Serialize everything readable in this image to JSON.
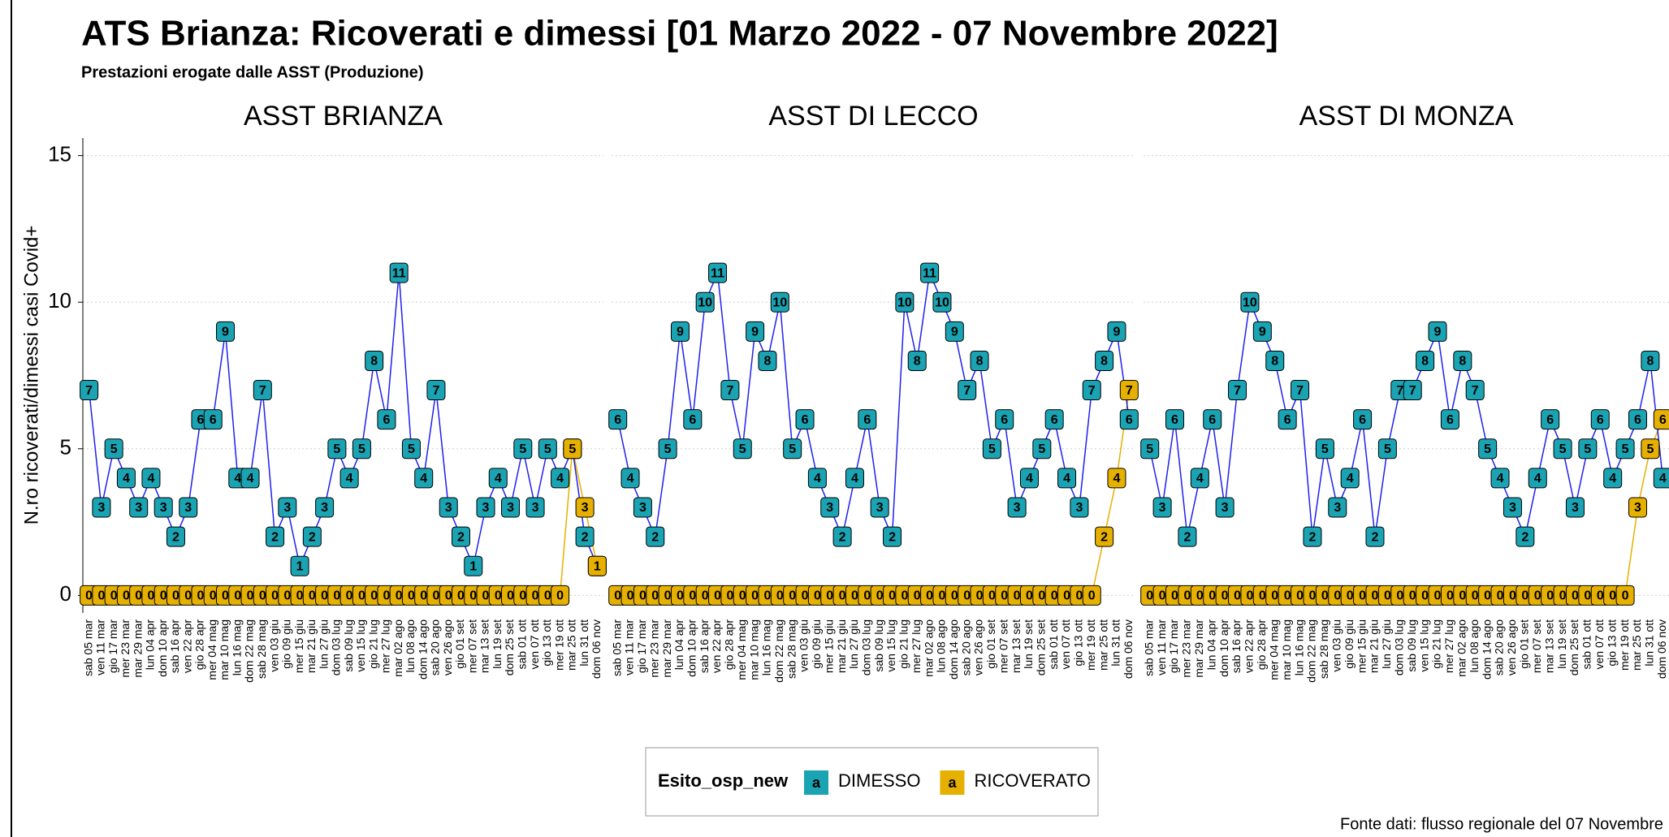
{
  "header": {
    "title": "ATS Brianza: Ricoverati e dimessi [01 Marzo 2022 - 07 Novembre 2022]",
    "subtitle": "Prestazioni erogate dalle ASST (Produzione)",
    "ylabel": "N.ro ricoverati/dimessi casi Covid+"
  },
  "legend": {
    "title": "Esito_osp_new",
    "glyph": "a"
  },
  "source": "Fonte dati: flusso regionale del 07 Novembre",
  "chart_data": [
    {
      "type": "line",
      "title": "ASST BRIANZA",
      "categories": [
        "sab 05 mar",
        "ven 11 mar",
        "gio 17 mar",
        "mer 23 mar",
        "mar 29 mar",
        "lun 04 apr",
        "dom 10 apr",
        "sab 16 apr",
        "ven 22 apr",
        "gio 28 apr",
        "mer 04 mag",
        "mar 10 mag",
        "lun 16 mag",
        "dom 22 mag",
        "sab 28 mag",
        "ven 03 giu",
        "gio 09 giu",
        "mer 15 giu",
        "mar 21 giu",
        "lun 27 giu",
        "dom 03 lug",
        "sab 09 lug",
        "ven 15 lug",
        "gio 21 lug",
        "mer 27 lug",
        "mar 02 ago",
        "lun 08 ago",
        "dom 14 ago",
        "sab 20 ago",
        "ven 26 ago",
        "gio 01 set",
        "mer 07 set",
        "mar 13 set",
        "lun 19 set",
        "dom 25 set",
        "sab 01 ott",
        "ven 07 ott",
        "gio 13 ott",
        "mer 19 ott",
        "mar 25 ott",
        "lun 31 ott",
        "dom 06 nov"
      ],
      "series": [
        {
          "name": "DIMESSO",
          "color": "#1aa3b2",
          "line_color": "#2020f0",
          "values": [
            7,
            3,
            5,
            4,
            3,
            4,
            3,
            2,
            3,
            6,
            6,
            9,
            4,
            4,
            7,
            2,
            3,
            1,
            2,
            3,
            5,
            4,
            5,
            8,
            6,
            11,
            5,
            4,
            7,
            3,
            2,
            1,
            3,
            4,
            3,
            5,
            3,
            5,
            4,
            5,
            2,
            1
          ]
        },
        {
          "name": "RICOVERATO",
          "color": "#e6b000",
          "line_color": "#e6b000",
          "values": [
            0,
            0,
            0,
            0,
            0,
            0,
            0,
            0,
            0,
            0,
            0,
            0,
            0,
            0,
            0,
            0,
            0,
            0,
            0,
            0,
            0,
            0,
            0,
            0,
            0,
            0,
            0,
            0,
            0,
            0,
            0,
            0,
            0,
            0,
            0,
            0,
            0,
            0,
            0,
            5,
            3,
            1
          ]
        }
      ],
      "ylim": [
        -0.6,
        15.6
      ],
      "yticks": [
        0,
        5,
        10,
        15
      ],
      "grid": true
    },
    {
      "type": "line",
      "title": "ASST DI LECCO",
      "categories": [
        "sab 05 mar",
        "ven 11 mar",
        "gio 17 mar",
        "mer 23 mar",
        "mar 29 mar",
        "lun 04 apr",
        "dom 10 apr",
        "sab 16 apr",
        "ven 22 apr",
        "gio 28 apr",
        "mer 04 mag",
        "mar 10 mag",
        "lun 16 mag",
        "dom 22 mag",
        "sab 28 mag",
        "ven 03 giu",
        "gio 09 giu",
        "mer 15 giu",
        "mar 21 giu",
        "lun 27 giu",
        "dom 03 lug",
        "sab 09 lug",
        "ven 15 lug",
        "gio 21 lug",
        "mer 27 lug",
        "mar 02 ago",
        "lun 08 ago",
        "dom 14 ago",
        "sab 20 ago",
        "ven 26 ago",
        "gio 01 set",
        "mer 07 set",
        "mar 13 set",
        "lun 19 set",
        "dom 25 set",
        "sab 01 ott",
        "ven 07 ott",
        "gio 13 ott",
        "mer 19 ott",
        "mar 25 ott",
        "lun 31 ott",
        "dom 06 nov"
      ],
      "series": [
        {
          "name": "DIMESSO",
          "color": "#1aa3b2",
          "line_color": "#2020f0",
          "values": [
            6,
            4,
            3,
            2,
            5,
            9,
            6,
            10,
            11,
            7,
            5,
            9,
            8,
            10,
            5,
            6,
            4,
            3,
            2,
            4,
            6,
            3,
            2,
            10,
            8,
            11,
            10,
            9,
            7,
            8,
            5,
            6,
            3,
            4,
            5,
            6,
            4,
            3,
            7,
            8,
            9,
            6
          ]
        },
        {
          "name": "RICOVERATO",
          "color": "#e6b000",
          "line_color": "#e6b000",
          "values": [
            0,
            0,
            0,
            0,
            0,
            0,
            0,
            0,
            0,
            0,
            0,
            0,
            0,
            0,
            0,
            0,
            0,
            0,
            0,
            0,
            0,
            0,
            0,
            0,
            0,
            0,
            0,
            0,
            0,
            0,
            0,
            0,
            0,
            0,
            0,
            0,
            0,
            0,
            0,
            2,
            4,
            7
          ]
        }
      ],
      "ylim": [
        -0.6,
        15.6
      ],
      "yticks": [
        0,
        5,
        10,
        15
      ],
      "grid": true
    },
    {
      "type": "line",
      "title": "ASST DI MONZA",
      "categories": [
        "sab 05 mar",
        "ven 11 mar",
        "gio 17 mar",
        "mer 23 mar",
        "mar 29 mar",
        "lun 04 apr",
        "dom 10 apr",
        "sab 16 apr",
        "ven 22 apr",
        "gio 28 apr",
        "mer 04 mag",
        "mar 10 mag",
        "lun 16 mag",
        "dom 22 mag",
        "sab 28 mag",
        "ven 03 giu",
        "gio 09 giu",
        "mer 15 giu",
        "mar 21 giu",
        "lun 27 giu",
        "dom 03 lug",
        "sab 09 lug",
        "ven 15 lug",
        "gio 21 lug",
        "mer 27 lug",
        "mar 02 ago",
        "lun 08 ago",
        "dom 14 ago",
        "sab 20 ago",
        "ven 26 ago",
        "gio 01 set",
        "mer 07 set",
        "mar 13 set",
        "lun 19 set",
        "dom 25 set",
        "sab 01 ott",
        "ven 07 ott",
        "gio 13 ott",
        "mer 19 ott",
        "mar 25 ott",
        "lun 31 ott",
        "dom 06 nov"
      ],
      "series": [
        {
          "name": "DIMESSO",
          "color": "#1aa3b2",
          "line_color": "#2020f0",
          "values": [
            5,
            3,
            6,
            2,
            4,
            6,
            3,
            7,
            10,
            9,
            8,
            6,
            7,
            2,
            5,
            3,
            4,
            6,
            2,
            5,
            7,
            7,
            8,
            9,
            6,
            8,
            7,
            5,
            4,
            3,
            2,
            4,
            6,
            5,
            3,
            5,
            6,
            4,
            5,
            6,
            8,
            4
          ]
        },
        {
          "name": "RICOVERATO",
          "color": "#e6b000",
          "line_color": "#e6b000",
          "values": [
            0,
            0,
            0,
            0,
            0,
            0,
            0,
            0,
            0,
            0,
            0,
            0,
            0,
            0,
            0,
            0,
            0,
            0,
            0,
            0,
            0,
            0,
            0,
            0,
            0,
            0,
            0,
            0,
            0,
            0,
            0,
            0,
            0,
            0,
            0,
            0,
            0,
            0,
            0,
            3,
            5,
            6
          ]
        }
      ],
      "ylim": [
        -0.6,
        15.6
      ],
      "yticks": [
        0,
        5,
        10,
        15
      ],
      "grid": true
    }
  ]
}
